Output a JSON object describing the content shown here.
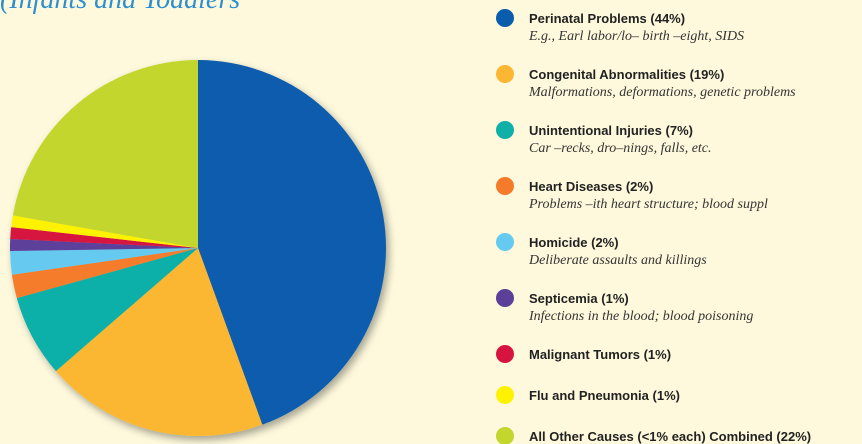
{
  "chart_data": {
    "type": "pie",
    "title": "(Infants and Toddlers",
    "categories": [
      "Perinatal Problems (44%)",
      "Congenital Abnormalities (19%)",
      "Unintentional Injuries (7%)",
      "Heart Diseases (2%)",
      "Homicide (2%)",
      "Septicemia (1%)",
      "Malignant Tumors (1%)",
      "Flu and Pneumonia (1%)",
      "All Other Causes (<1% each) Combined (22%)"
    ],
    "descriptions": [
      "E.g.,  Earl  labor/lo– birth –eight, SIDS",
      "Malformations, deformations, genetic problems",
      "Car –recks, dro–nings, falls, etc.",
      "Problems –ith heart structure; blood suppl",
      "Deliberate assaults and killings",
      "Infections in the blood; blood poisoning",
      null,
      null,
      null
    ],
    "values": [
      44,
      19,
      7,
      2,
      2,
      1,
      1,
      1,
      22
    ],
    "colors": [
      "#0a5cad",
      "#fbb731",
      "#10b0a8",
      "#f47b2a",
      "#66caf0",
      "#5b3f99",
      "#d7143f",
      "#fff200",
      "#c2d62d"
    ]
  }
}
